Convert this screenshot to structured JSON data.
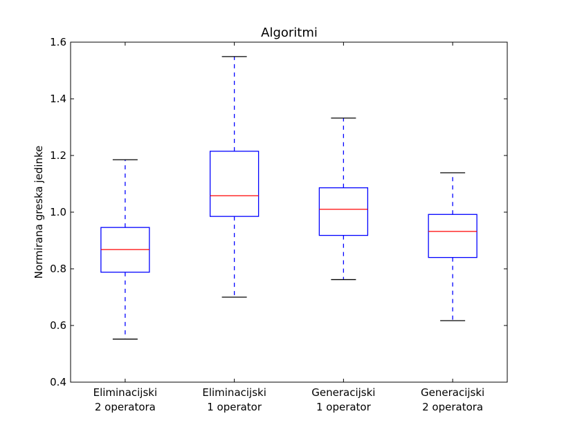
{
  "chart_data": {
    "type": "box",
    "title": "Algoritmi",
    "xlabel": "",
    "ylabel": "Normirana greska jedinke",
    "ylim": [
      0.4,
      1.6
    ],
    "yticks": [
      "0.4",
      "0.6",
      "0.8",
      "1.0",
      "1.2",
      "1.4",
      "1.6"
    ],
    "grid": false,
    "categories": [
      [
        "Eliminacijski",
        "2 operatora"
      ],
      [
        "Eliminacijski",
        "1 operator"
      ],
      [
        "Generacijski",
        "1 operator"
      ],
      [
        "Generacijski",
        "2 operatora"
      ]
    ],
    "boxes": [
      {
        "whisker_low": 0.552,
        "q1": 0.788,
        "median": 0.868,
        "q3": 0.946,
        "whisker_high": 1.185
      },
      {
        "whisker_low": 0.7,
        "q1": 0.985,
        "median": 1.058,
        "q3": 1.215,
        "whisker_high": 1.549
      },
      {
        "whisker_low": 0.762,
        "q1": 0.918,
        "median": 1.01,
        "q3": 1.086,
        "whisker_high": 1.332
      },
      {
        "whisker_low": 0.617,
        "q1": 0.84,
        "median": 0.932,
        "q3": 0.992,
        "whisker_high": 1.139
      }
    ],
    "colors": {
      "box": "#0000ff",
      "whisker": "#0000ff",
      "median": "#ff0000",
      "cap": "#000000"
    }
  }
}
